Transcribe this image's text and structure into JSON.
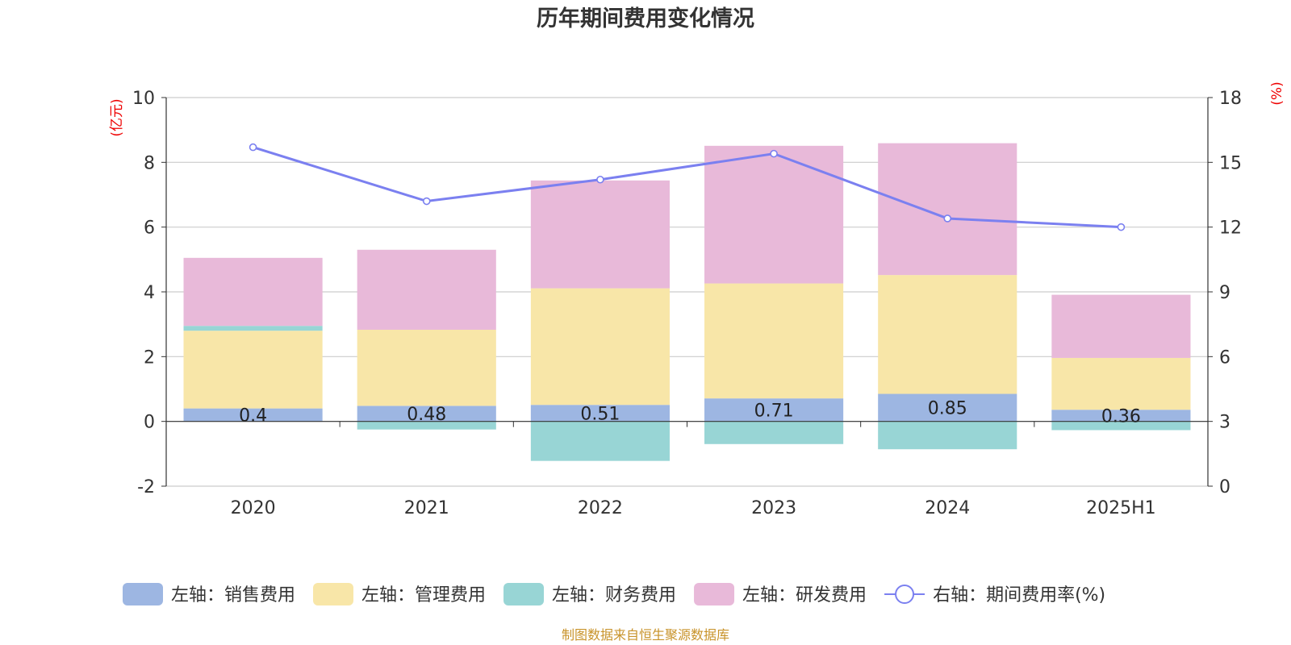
{
  "chart_data": {
    "type": "bar",
    "title": "历年期间费用变化情况",
    "categories": [
      "2020",
      "2021",
      "2022",
      "2023",
      "2024",
      "2025H1"
    ],
    "y_left": {
      "unit": "(亿元)",
      "ticks": [
        "10",
        "8",
        "6",
        "4",
        "2",
        "0",
        "-2"
      ],
      "ylim": [
        -2,
        10
      ]
    },
    "y_right": {
      "unit": "(%)",
      "ticks": [
        "18",
        "15",
        "12",
        "9",
        "6",
        "3",
        "0"
      ],
      "ylim": [
        0,
        18
      ]
    },
    "grid": true,
    "legend_position": "bottom",
    "series": [
      {
        "name": "左轴：销售费用",
        "axis": "left",
        "kind": "bar",
        "color": "#9db6e2",
        "values": [
          0.4,
          0.48,
          0.51,
          0.71,
          0.85,
          0.36
        ],
        "labels": [
          "0.4",
          "0.48",
          "0.51",
          "0.71",
          "0.85",
          "0.36"
        ]
      },
      {
        "name": "左轴：管理费用",
        "axis": "left",
        "kind": "bar",
        "color": "#f8e6a8",
        "values": [
          2.4,
          2.35,
          3.6,
          3.55,
          3.67,
          1.6
        ]
      },
      {
        "name": "左轴：财务费用",
        "axis": "left",
        "kind": "bar",
        "color": "#98d5d5",
        "values": [
          0.15,
          -0.25,
          -1.22,
          -0.7,
          -0.86,
          -0.27
        ]
      },
      {
        "name": "左轴：研发费用",
        "axis": "left",
        "kind": "bar",
        "color": "#e8b9d9",
        "values": [
          2.1,
          2.47,
          3.33,
          4.25,
          4.07,
          1.95
        ]
      },
      {
        "name": "右轴：期间费用率(%)",
        "axis": "right",
        "kind": "line",
        "color": "#7b80f0",
        "values": [
          15.7,
          13.2,
          14.2,
          15.4,
          12.4,
          12.0
        ]
      }
    ]
  },
  "footer": {
    "source": "制图数据来自恒生聚源数据库"
  }
}
